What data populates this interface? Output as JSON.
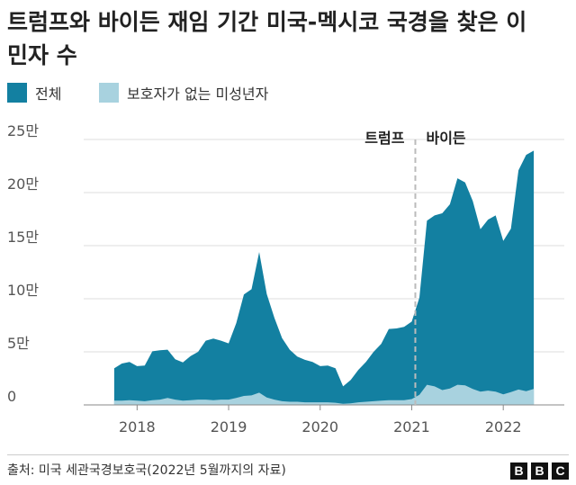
{
  "title": "트럼프와 바이든 재임 기간 미국-멕시코 국경을 찾은 이민자 수",
  "legend": [
    {
      "label": "전체",
      "color": "#1380A1"
    },
    {
      "label": "보호자가 없는 미성년자",
      "color": "#A8D2DF"
    }
  ],
  "source": "출처: 미국 세관국경보호국(2022년 5월까지의 자료)",
  "brand": [
    "B",
    "B",
    "C"
  ],
  "chart_data": {
    "type": "area",
    "y_ticks": [
      {
        "value": 0,
        "label": "0"
      },
      {
        "value": 50000,
        "label": "5만"
      },
      {
        "value": 100000,
        "label": "10만"
      },
      {
        "value": 150000,
        "label": "15만"
      },
      {
        "value": 200000,
        "label": "20만"
      },
      {
        "value": 250000,
        "label": "25만"
      }
    ],
    "ylim": [
      0,
      250000
    ],
    "x_ticks": [
      {
        "value": "2018-01",
        "label": "2018"
      },
      {
        "value": "2019-01",
        "label": "2019"
      },
      {
        "value": "2020-01",
        "label": "2020"
      },
      {
        "value": "2021-01",
        "label": "2021"
      },
      {
        "value": "2022-01",
        "label": "2022"
      }
    ],
    "xlim": [
      "2017-06",
      "2022-09"
    ],
    "grid": true,
    "divider": {
      "x": "2021-01",
      "left_label": "트럼프",
      "right_label": "바이든"
    },
    "x": [
      "2017-10",
      "2017-11",
      "2017-12",
      "2018-01",
      "2018-02",
      "2018-03",
      "2018-04",
      "2018-05",
      "2018-06",
      "2018-07",
      "2018-08",
      "2018-09",
      "2018-10",
      "2018-11",
      "2018-12",
      "2019-01",
      "2019-02",
      "2019-03",
      "2019-04",
      "2019-05",
      "2019-06",
      "2019-07",
      "2019-08",
      "2019-09",
      "2019-10",
      "2019-11",
      "2019-12",
      "2020-01",
      "2020-02",
      "2020-03",
      "2020-04",
      "2020-05",
      "2020-06",
      "2020-07",
      "2020-08",
      "2020-09",
      "2020-10",
      "2020-11",
      "2020-12",
      "2021-01",
      "2021-02",
      "2021-03",
      "2021-04",
      "2021-05",
      "2021-06",
      "2021-07",
      "2021-08",
      "2021-09",
      "2021-10",
      "2021-11",
      "2021-12",
      "2022-01",
      "2022-02",
      "2022-03",
      "2022-04",
      "2022-05"
    ],
    "series": [
      {
        "name": "전체",
        "color": "#1380A1",
        "values": [
          34500,
          39000,
          40500,
          36500,
          37000,
          50500,
          51500,
          52000,
          43000,
          40000,
          46000,
          50000,
          60500,
          62500,
          60500,
          58000,
          77000,
          104000,
          109000,
          144000,
          104500,
          82000,
          63000,
          52000,
          45500,
          42500,
          40500,
          36500,
          37000,
          34500,
          17500,
          23500,
          33000,
          40500,
          50000,
          57500,
          71500,
          72000,
          73500,
          78500,
          101000,
          173500,
          178500,
          180500,
          189000,
          213500,
          209500,
          192000,
          165500,
          174500,
          178500,
          154500,
          166000,
          221000,
          235500,
          239500
        ]
      },
      {
        "name": "보호자가 없는 미성년자",
        "color": "#A8D2DF",
        "values": [
          4000,
          4000,
          4500,
          4000,
          3500,
          4500,
          5000,
          6500,
          5000,
          4000,
          4500,
          5000,
          5000,
          4500,
          5000,
          5000,
          6500,
          8500,
          9000,
          11500,
          7000,
          5000,
          3500,
          3000,
          3000,
          2500,
          2500,
          2500,
          2500,
          2000,
          1000,
          1500,
          2500,
          3000,
          3500,
          4000,
          4500,
          4500,
          4500,
          5500,
          9500,
          19000,
          17500,
          14000,
          15500,
          19000,
          18500,
          15000,
          12500,
          13500,
          12500,
          10000,
          12000,
          14500,
          13000,
          15000
        ]
      }
    ]
  }
}
